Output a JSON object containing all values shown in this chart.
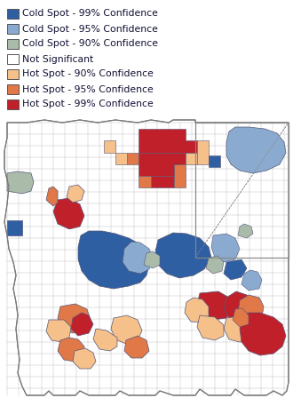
{
  "legend_items": [
    {
      "label": "Cold Spot - 99% Confidence",
      "color": "#2E5FA3"
    },
    {
      "label": "Cold Spot - 95% Confidence",
      "color": "#8AABCF"
    },
    {
      "label": "Cold Spot - 90% Confidence",
      "color": "#AABBAA"
    },
    {
      "label": "Not Significant",
      "color": "#FFFFFF"
    },
    {
      "label": "Hot Spot - 90% Confidence",
      "color": "#F5C08A"
    },
    {
      "label": "Hot Spot - 95% Confidence",
      "color": "#E07848"
    },
    {
      "label": "Hot Spot - 99% Confidence",
      "color": "#C0202A"
    }
  ],
  "legend_edge_color": "#555555",
  "fig_bg": "#FFFFFF",
  "legend_fontsize": 7.8
}
